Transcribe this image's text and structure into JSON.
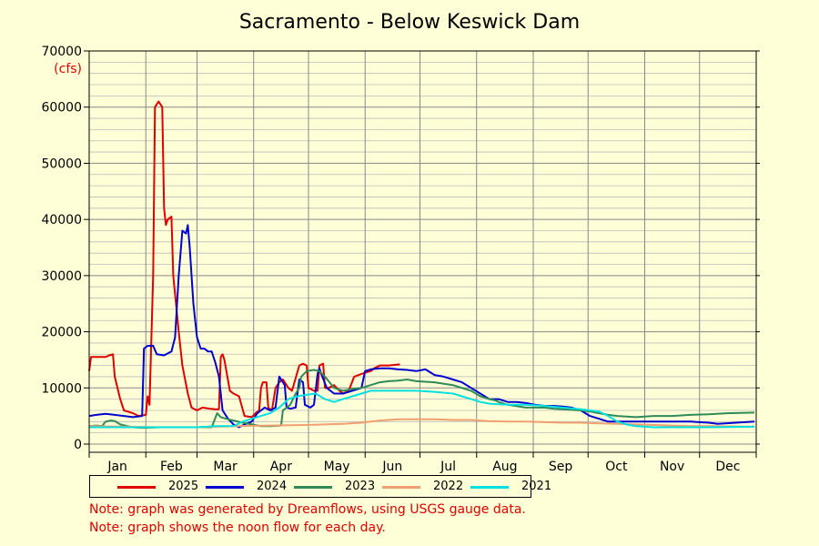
{
  "chart_data": {
    "type": "line",
    "title": "Sacramento - Below Keswick Dam",
    "ylabel": "(cfs)",
    "ylim": [
      0,
      70000
    ],
    "yticks": [
      "0",
      "10000",
      "20000",
      "30000",
      "40000",
      "50000",
      "60000",
      "70000"
    ],
    "x_axis": "day of year (1-365)",
    "xlim": [
      1,
      365
    ],
    "months": [
      "Jan",
      "Feb",
      "Mar",
      "Apr",
      "May",
      "Jun",
      "Jul",
      "Aug",
      "Sep",
      "Oct",
      "Nov",
      "Dec"
    ],
    "grid": true,
    "legend_position": "bottom",
    "series": [
      {
        "name": "2025",
        "color": "#e00000",
        "points": [
          [
            1,
            13000
          ],
          [
            2,
            15500
          ],
          [
            10,
            15500
          ],
          [
            12,
            15800
          ],
          [
            14,
            16000
          ],
          [
            15,
            12000
          ],
          [
            18,
            8000
          ],
          [
            20,
            6000
          ],
          [
            25,
            5500
          ],
          [
            28,
            5000
          ],
          [
            32,
            5200
          ],
          [
            33,
            8500
          ],
          [
            34,
            7000
          ],
          [
            36,
            30000
          ],
          [
            37,
            60000
          ],
          [
            39,
            61000
          ],
          [
            41,
            60000
          ],
          [
            42,
            42000
          ],
          [
            43,
            39000
          ],
          [
            44,
            40000
          ],
          [
            46,
            40500
          ],
          [
            47,
            30000
          ],
          [
            50,
            20000
          ],
          [
            52,
            14000
          ],
          [
            55,
            9000
          ],
          [
            57,
            6500
          ],
          [
            60,
            6000
          ],
          [
            63,
            6500
          ],
          [
            67,
            6300
          ],
          [
            70,
            6200
          ],
          [
            72,
            6200
          ],
          [
            73,
            15500
          ],
          [
            74,
            16000
          ],
          [
            75,
            15000
          ],
          [
            78,
            9500
          ],
          [
            80,
            9000
          ],
          [
            83,
            8500
          ],
          [
            86,
            5000
          ],
          [
            90,
            4800
          ],
          [
            92,
            5500
          ],
          [
            94,
            6000
          ],
          [
            95,
            10000
          ],
          [
            96,
            11000
          ],
          [
            98,
            11000
          ],
          [
            99,
            6500
          ],
          [
            101,
            6000
          ],
          [
            103,
            10000
          ],
          [
            105,
            11000
          ],
          [
            107,
            11500
          ],
          [
            110,
            10000
          ],
          [
            112,
            9500
          ],
          [
            116,
            14000
          ],
          [
            118,
            14300
          ],
          [
            120,
            14000
          ],
          [
            121,
            10000
          ],
          [
            124,
            9500
          ],
          [
            126,
            9500
          ],
          [
            127,
            14000
          ],
          [
            129,
            14300
          ],
          [
            130,
            10000
          ],
          [
            132,
            10000
          ],
          [
            135,
            10500
          ],
          [
            138,
            9500
          ],
          [
            140,
            9000
          ],
          [
            143,
            9500
          ],
          [
            146,
            12000
          ],
          [
            150,
            12500
          ],
          [
            155,
            13000
          ],
          [
            157,
            13500
          ],
          [
            160,
            14000
          ],
          [
            165,
            14000
          ],
          [
            171,
            14200
          ]
        ]
      },
      {
        "name": "2024",
        "color": "#0000d0",
        "points": [
          [
            1,
            5000
          ],
          [
            5,
            5200
          ],
          [
            10,
            5400
          ],
          [
            15,
            5200
          ],
          [
            20,
            5000
          ],
          [
            25,
            4800
          ],
          [
            30,
            5000
          ],
          [
            31,
            17000
          ],
          [
            33,
            17500
          ],
          [
            36,
            17500
          ],
          [
            38,
            16000
          ],
          [
            42,
            15800
          ],
          [
            46,
            16500
          ],
          [
            48,
            19000
          ],
          [
            50,
            30000
          ],
          [
            52,
            38000
          ],
          [
            54,
            37500
          ],
          [
            55,
            39000
          ],
          [
            56,
            35000
          ],
          [
            58,
            25000
          ],
          [
            60,
            19000
          ],
          [
            62,
            17000
          ],
          [
            64,
            17000
          ],
          [
            66,
            16500
          ],
          [
            68,
            16500
          ],
          [
            70,
            14500
          ],
          [
            72,
            12000
          ],
          [
            74,
            6000
          ],
          [
            77,
            4500
          ],
          [
            80,
            3500
          ],
          [
            83,
            3000
          ],
          [
            86,
            3500
          ],
          [
            90,
            4000
          ],
          [
            93,
            5500
          ],
          [
            95,
            6000
          ],
          [
            97,
            6500
          ],
          [
            100,
            6000
          ],
          [
            103,
            6500
          ],
          [
            105,
            12000
          ],
          [
            106,
            11500
          ],
          [
            108,
            10500
          ],
          [
            109,
            6500
          ],
          [
            111,
            6300
          ],
          [
            114,
            6500
          ],
          [
            116,
            11500
          ],
          [
            118,
            11000
          ],
          [
            119,
            7000
          ],
          [
            122,
            6500
          ],
          [
            124,
            7000
          ],
          [
            126,
            12500
          ],
          [
            127,
            13500
          ],
          [
            128,
            12500
          ],
          [
            131,
            10000
          ],
          [
            135,
            9000
          ],
          [
            140,
            9000
          ],
          [
            145,
            9500
          ],
          [
            150,
            10000
          ],
          [
            152,
            13000
          ],
          [
            155,
            13300
          ],
          [
            160,
            13500
          ],
          [
            165,
            13500
          ],
          [
            170,
            13300
          ],
          [
            175,
            13200
          ],
          [
            180,
            13000
          ],
          [
            185,
            13300
          ],
          [
            190,
            12300
          ],
          [
            195,
            12000
          ],
          [
            200,
            11500
          ],
          [
            205,
            11000
          ],
          [
            210,
            10000
          ],
          [
            215,
            9000
          ],
          [
            220,
            8000
          ],
          [
            225,
            8000
          ],
          [
            230,
            7500
          ],
          [
            235,
            7500
          ],
          [
            240,
            7300
          ],
          [
            245,
            7000
          ],
          [
            250,
            6800
          ],
          [
            255,
            6800
          ],
          [
            260,
            6700
          ],
          [
            265,
            6500
          ],
          [
            270,
            6000
          ],
          [
            275,
            5000
          ],
          [
            280,
            4500
          ],
          [
            285,
            4000
          ],
          [
            290,
            4000
          ],
          [
            300,
            4000
          ],
          [
            310,
            4000
          ],
          [
            320,
            4000
          ],
          [
            330,
            4000
          ],
          [
            340,
            3800
          ],
          [
            345,
            3600
          ],
          [
            365,
            4000
          ]
        ]
      },
      {
        "name": "2023",
        "color": "#2e8b57",
        "points": [
          [
            1,
            3200
          ],
          [
            5,
            3300
          ],
          [
            8,
            3200
          ],
          [
            10,
            4000
          ],
          [
            13,
            4200
          ],
          [
            15,
            4100
          ],
          [
            18,
            3500
          ],
          [
            22,
            3200
          ],
          [
            25,
            3000
          ],
          [
            30,
            2900
          ],
          [
            40,
            3000
          ],
          [
            50,
            3000
          ],
          [
            60,
            3000
          ],
          [
            68,
            3000
          ],
          [
            71,
            5500
          ],
          [
            73,
            4800
          ],
          [
            76,
            4500
          ],
          [
            80,
            4200
          ],
          [
            85,
            3800
          ],
          [
            90,
            3500
          ],
          [
            95,
            3200
          ],
          [
            100,
            3200
          ],
          [
            106,
            3300
          ],
          [
            107,
            6000
          ],
          [
            109,
            6500
          ],
          [
            111,
            7000
          ],
          [
            114,
            9000
          ],
          [
            116,
            10000
          ],
          [
            117,
            12000
          ],
          [
            120,
            13000
          ],
          [
            124,
            13200
          ],
          [
            127,
            13000
          ],
          [
            130,
            12000
          ],
          [
            135,
            10000
          ],
          [
            140,
            9500
          ],
          [
            145,
            9800
          ],
          [
            150,
            10000
          ],
          [
            155,
            10500
          ],
          [
            160,
            11000
          ],
          [
            165,
            11200
          ],
          [
            170,
            11300
          ],
          [
            175,
            11500
          ],
          [
            180,
            11200
          ],
          [
            190,
            11000
          ],
          [
            200,
            10500
          ],
          [
            210,
            9500
          ],
          [
            215,
            8500
          ],
          [
            220,
            8000
          ],
          [
            223,
            7800
          ],
          [
            225,
            7500
          ],
          [
            230,
            7000
          ],
          [
            240,
            6500
          ],
          [
            250,
            6500
          ],
          [
            255,
            6300
          ],
          [
            260,
            6200
          ],
          [
            265,
            6100
          ],
          [
            270,
            6000
          ],
          [
            275,
            5800
          ],
          [
            280,
            5500
          ],
          [
            285,
            5200
          ],
          [
            290,
            5000
          ],
          [
            300,
            4800
          ],
          [
            310,
            5000
          ],
          [
            320,
            5000
          ],
          [
            330,
            5200
          ],
          [
            340,
            5300
          ],
          [
            350,
            5500
          ],
          [
            365,
            5600
          ]
        ]
      },
      {
        "name": "2022",
        "color": "#f0a070",
        "points": [
          [
            1,
            3200
          ],
          [
            20,
            3100
          ],
          [
            40,
            3000
          ],
          [
            60,
            3000
          ],
          [
            80,
            3200
          ],
          [
            100,
            3300
          ],
          [
            120,
            3400
          ],
          [
            140,
            3600
          ],
          [
            150,
            3800
          ],
          [
            160,
            4200
          ],
          [
            170,
            4400
          ],
          [
            180,
            4400
          ],
          [
            190,
            4400
          ],
          [
            200,
            4300
          ],
          [
            210,
            4300
          ],
          [
            220,
            4100
          ],
          [
            230,
            4000
          ],
          [
            240,
            4000
          ],
          [
            250,
            3900
          ],
          [
            260,
            3800
          ],
          [
            270,
            3800
          ],
          [
            280,
            3700
          ],
          [
            290,
            3600
          ],
          [
            300,
            3500
          ],
          [
            310,
            3400
          ],
          [
            320,
            3300
          ],
          [
            330,
            3200
          ],
          [
            340,
            3200
          ],
          [
            365,
            3100
          ]
        ]
      },
      {
        "name": "2021",
        "color": "#00e0e0",
        "points": [
          [
            1,
            3000
          ],
          [
            20,
            3000
          ],
          [
            40,
            3000
          ],
          [
            60,
            3000
          ],
          [
            70,
            3200
          ],
          [
            80,
            3200
          ],
          [
            85,
            4000
          ],
          [
            90,
            4500
          ],
          [
            95,
            5000
          ],
          [
            100,
            5500
          ],
          [
            105,
            6500
          ],
          [
            110,
            8000
          ],
          [
            115,
            8500
          ],
          [
            120,
            8800
          ],
          [
            125,
            9000
          ],
          [
            130,
            8000
          ],
          [
            135,
            7500
          ],
          [
            140,
            8000
          ],
          [
            145,
            8500
          ],
          [
            150,
            9000
          ],
          [
            155,
            9500
          ],
          [
            160,
            9500
          ],
          [
            170,
            9500
          ],
          [
            180,
            9500
          ],
          [
            190,
            9300
          ],
          [
            200,
            9000
          ],
          [
            205,
            8500
          ],
          [
            210,
            8000
          ],
          [
            215,
            7500
          ],
          [
            220,
            7200
          ],
          [
            230,
            7000
          ],
          [
            240,
            7000
          ],
          [
            250,
            6800
          ],
          [
            260,
            6500
          ],
          [
            270,
            6200
          ],
          [
            275,
            6000
          ],
          [
            280,
            5800
          ],
          [
            285,
            5000
          ],
          [
            290,
            4000
          ],
          [
            295,
            3500
          ],
          [
            300,
            3200
          ],
          [
            310,
            3000
          ],
          [
            320,
            3000
          ],
          [
            340,
            3000
          ],
          [
            365,
            3100
          ]
        ]
      }
    ]
  },
  "notes": [
    "Note: graph was generated by Dreamflows, using USGS gauge data.",
    "Note: graph shows the noon flow for each day."
  ]
}
